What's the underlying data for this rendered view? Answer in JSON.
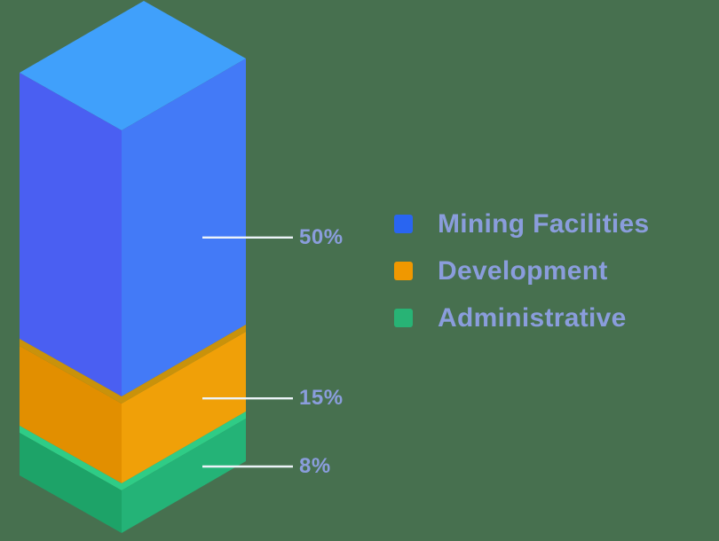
{
  "background_color": "#47704F",
  "text_color": "#8A9DDC",
  "leader_line_color": "#ECF3F8",
  "chart_data": {
    "type": "bar",
    "subtype": "isometric-3d-stacked-column",
    "unit": "%",
    "grid": false,
    "legend_position": "right-middle",
    "segments": [
      {
        "name": "Mining Facilities",
        "value": 50,
        "label": "50%",
        "face_top": "#40A0FB",
        "face_left": "#4A5FF2",
        "face_right": "#437AF7"
      },
      {
        "name": "Development",
        "value": 15,
        "label": "15%",
        "face_top": "#C9920B",
        "face_left": "#E28F00",
        "face_right": "#F0A008"
      },
      {
        "name": "Administrative",
        "value": 8,
        "label": "8%",
        "face_top": "#2FCC86",
        "face_left": "#1DA368",
        "face_right": "#24B377"
      }
    ]
  },
  "legend": {
    "items": [
      {
        "label": "Mining Facilities",
        "color": "#2965F1"
      },
      {
        "label": "Development",
        "color": "#F09800"
      },
      {
        "label": "Administrative",
        "color": "#28B375"
      }
    ]
  }
}
